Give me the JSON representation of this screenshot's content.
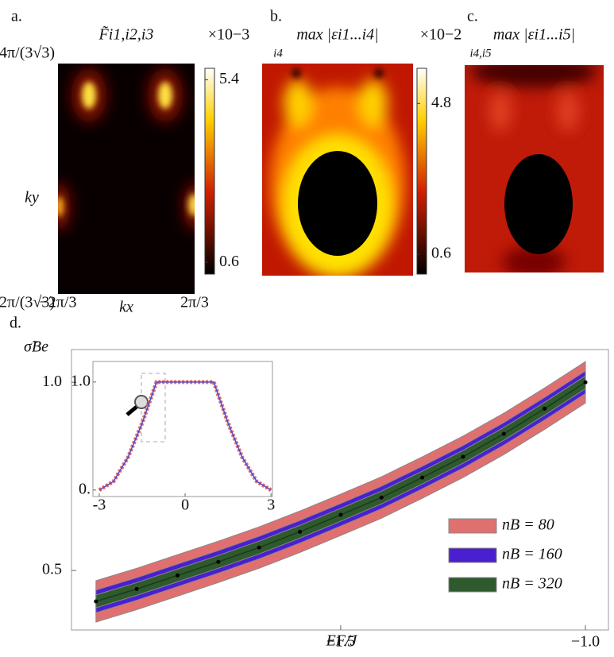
{
  "chart_data": [
    {
      "type": "heatmap",
      "panel": "a.",
      "title": "F̃i1,i2,i3",
      "colorbar_exponent": "×10−3",
      "clim": [
        0.29,
        5.7
      ],
      "cticks": [
        5.4,
        0.6
      ],
      "xlabel": "kx",
      "ylabel": "ky",
      "xlim": [
        -2.094,
        2.094
      ],
      "xticks": [
        {
          "value": -2.094,
          "label": "−2π/3"
        },
        {
          "value": 2.094,
          "label": "2π/3"
        }
      ],
      "ylim": [
        -1.209,
        2.418
      ],
      "yticks": [
        {
          "value": 2.418,
          "label": "4π/(3√3)"
        },
        {
          "value": -1.209,
          "label": "−2π/(3√3)"
        }
      ]
    },
    {
      "type": "heatmap",
      "panel": "b.",
      "title": "max |εi1...i4|",
      "title_sub": "i4",
      "colorbar_exponent": "×10−2",
      "clim": [
        0.05,
        5.78
      ],
      "cticks": [
        4.8,
        0.6
      ]
    },
    {
      "type": "heatmap",
      "panel": "c.",
      "title": "max |εi1...i5|",
      "title_sub": "i4,i5"
    },
    {
      "type": "line",
      "panel": "d.",
      "ylabel": "σ̃Be",
      "xlabel": "EF/J",
      "x": [
        -2.0,
        -1.9167,
        -1.8333,
        -1.75,
        -1.6667,
        -1.5833,
        -1.5,
        -1.4167,
        -1.3333,
        -1.25,
        -1.1667,
        -1.0833,
        -1.0
      ],
      "values": [
        0.418,
        0.451,
        0.487,
        0.523,
        0.561,
        0.603,
        0.648,
        0.694,
        0.747,
        0.802,
        0.863,
        0.93,
        1.0
      ],
      "series": [
        {
          "name": "nB = 80",
          "color": "#e07070",
          "halfwidth": 0.055
        },
        {
          "name": "nB = 160",
          "color": "#4a1fd0",
          "halfwidth": 0.03
        },
        {
          "name": "nB = 320",
          "color": "#2e5a2e",
          "halfwidth": 0.017
        }
      ],
      "xlim": [
        -2.05,
        -0.953
      ],
      "xticks": [
        {
          "value": -1.5,
          "label": "−1.5"
        },
        {
          "value": -1.0,
          "label": "−1.0"
        }
      ],
      "ylim": [
        0.342,
        1.087
      ],
      "yticks": [
        0.5,
        {
          "value": 1.0,
          "label": "1.0"
        }
      ],
      "legend": "lower right"
    },
    {
      "type": "inset",
      "x": [
        -3,
        -2.5,
        -2,
        -1.5,
        -1,
        1,
        1.5,
        2,
        2.5,
        3
      ],
      "values": [
        0,
        0.08,
        0.3,
        0.62,
        1.0,
        1.0,
        0.62,
        0.3,
        0.08,
        0
      ],
      "color": "#4a4ad0",
      "band_color": "#e07070",
      "xlim": [
        -3.22,
        3.05
      ],
      "xticks": [
        -3,
        0,
        3
      ],
      "ylim": [
        -0.06,
        1.19
      ],
      "yticks": [
        {
          "value": 0,
          "label": "0."
        },
        {
          "value": 1.0,
          "label": "1.0"
        }
      ]
    }
  ]
}
